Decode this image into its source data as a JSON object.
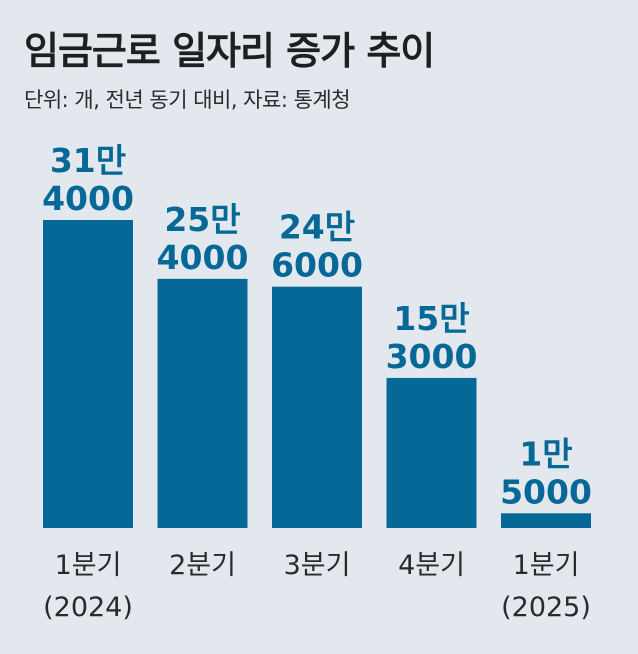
{
  "chart_data": {
    "type": "bar",
    "title": "임금근로 일자리 증가 추이",
    "subtitle": "단위: 개, 전년 동기 대비, 자료: 통계청",
    "categories": [
      [
        "1분기",
        "(2024)"
      ],
      [
        "2분기"
      ],
      [
        "3분기"
      ],
      [
        "4분기"
      ],
      [
        "1분기",
        "(2025)"
      ]
    ],
    "values": [
      314000,
      254000,
      246000,
      153000,
      15000
    ],
    "value_labels": [
      [
        "31만",
        "4000"
      ],
      [
        "25만",
        "4000"
      ],
      [
        "24만",
        "6000"
      ],
      [
        "15만",
        "3000"
      ],
      [
        "1만",
        "5000"
      ]
    ],
    "ylim": [
      0,
      314000
    ],
    "colors": {
      "bar": "#056896",
      "background": "#e3e8ee"
    }
  }
}
